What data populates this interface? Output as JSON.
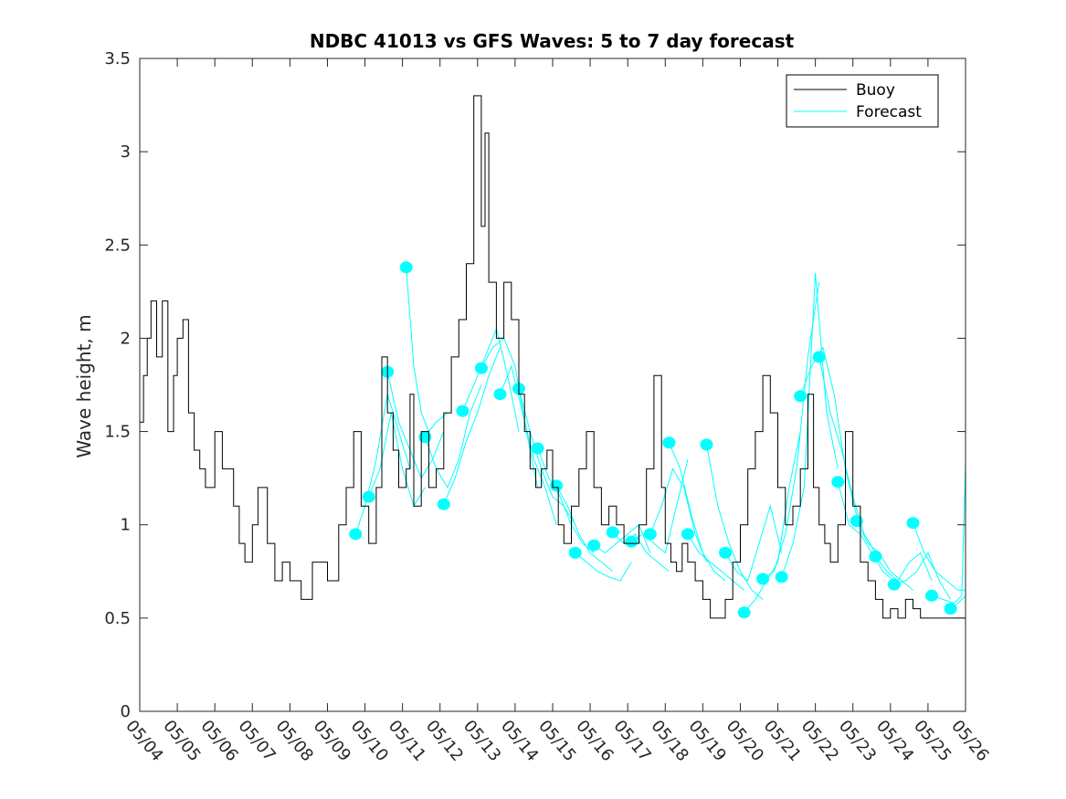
{
  "chart_data": {
    "type": "line",
    "title": "NDBC 41013 vs GFS Waves: 5 to 7 day forecast",
    "xlabel": "",
    "ylabel": "Wave height, m",
    "ylim": [
      0,
      3.5
    ],
    "xlim": [
      0,
      22
    ],
    "x_tick_labels": [
      "05/04",
      "05/05",
      "05/06",
      "05/07",
      "05/08",
      "05/09",
      "05/10",
      "05/11",
      "05/12",
      "05/13",
      "05/14",
      "05/15",
      "05/16",
      "05/17",
      "05/18",
      "05/19",
      "05/20",
      "05/21",
      "05/22",
      "05/23",
      "05/24",
      "05/25",
      "05/26"
    ],
    "y_ticks": [
      0,
      0.5,
      1,
      1.5,
      2,
      2.5,
      3,
      3.5
    ],
    "y_tick_labels": [
      "0",
      "0.5",
      "1",
      "1.5",
      "2",
      "2.5",
      "3",
      "3.5"
    ],
    "grid": false,
    "legend_position": "top-right",
    "colors": {
      "buoy": "#000000",
      "forecast": "#00ffff"
    },
    "series": [
      {
        "name": "Buoy",
        "style": "stairs",
        "x": [
          0,
          0.1,
          0.2,
          0.3,
          0.45,
          0.6,
          0.75,
          0.9,
          1.0,
          1.15,
          1.3,
          1.45,
          1.6,
          1.75,
          2.0,
          2.2,
          2.5,
          2.65,
          2.8,
          3.0,
          3.15,
          3.4,
          3.6,
          3.8,
          4.0,
          4.3,
          4.6,
          5.0,
          5.3,
          5.5,
          5.7,
          5.9,
          6.1,
          6.3,
          6.45,
          6.6,
          6.75,
          6.9,
          7.1,
          7.2,
          7.3,
          7.5,
          7.7,
          7.9,
          8.1,
          8.3,
          8.5,
          8.7,
          8.9,
          9.1,
          9.2,
          9.3,
          9.5,
          9.7,
          9.9,
          10.1,
          10.25,
          10.4,
          10.55,
          10.7,
          10.85,
          11.0,
          11.15,
          11.3,
          11.5,
          11.7,
          11.9,
          12.1,
          12.3,
          12.5,
          12.7,
          12.9,
          13.1,
          13.3,
          13.5,
          13.7,
          13.9,
          14.0,
          14.15,
          14.3,
          14.45,
          14.6,
          14.8,
          15.0,
          15.2,
          15.4,
          15.6,
          15.8,
          16.0,
          16.2,
          16.4,
          16.6,
          16.8,
          17.0,
          17.2,
          17.4,
          17.6,
          17.8,
          17.95,
          18.1,
          18.25,
          18.4,
          18.6,
          18.8,
          19.0,
          19.2,
          19.4,
          19.6,
          19.8,
          20.0,
          20.2,
          20.4,
          20.6,
          20.8,
          21.0,
          21.2,
          21.4,
          22.0
        ],
        "y": [
          1.55,
          1.8,
          2.0,
          2.2,
          1.9,
          2.2,
          1.5,
          1.8,
          2.0,
          2.1,
          1.6,
          1.4,
          1.3,
          1.2,
          1.5,
          1.3,
          1.1,
          0.9,
          0.8,
          1.0,
          1.2,
          0.9,
          0.7,
          0.8,
          0.7,
          0.6,
          0.8,
          0.7,
          1.0,
          1.2,
          1.5,
          1.1,
          0.9,
          1.2,
          1.9,
          1.6,
          1.4,
          1.2,
          1.3,
          1.7,
          1.1,
          1.5,
          1.2,
          1.3,
          1.6,
          1.9,
          2.1,
          2.4,
          3.3,
          2.6,
          3.1,
          2.3,
          2.0,
          2.3,
          2.1,
          1.7,
          1.5,
          1.3,
          1.2,
          1.3,
          1.4,
          1.2,
          1.0,
          0.9,
          1.1,
          1.3,
          1.5,
          1.2,
          1.0,
          1.1,
          1.0,
          0.9,
          0.9,
          1.0,
          1.3,
          1.8,
          1.2,
          0.9,
          0.8,
          0.75,
          0.9,
          0.8,
          0.7,
          0.6,
          0.5,
          0.5,
          0.6,
          0.8,
          1.0,
          1.3,
          1.5,
          1.8,
          1.6,
          1.2,
          1.0,
          1.1,
          1.3,
          1.7,
          1.2,
          1.0,
          0.9,
          0.8,
          1.0,
          1.5,
          1.1,
          0.8,
          0.7,
          0.6,
          0.5,
          0.55,
          0.5,
          0.6,
          0.55,
          0.5,
          0.5,
          0.5,
          0.5,
          0.5
        ]
      },
      {
        "name": "Forecast",
        "markers": [
          [
            5.75,
            0.95
          ],
          [
            6.1,
            1.15
          ],
          [
            6.6,
            1.82
          ],
          [
            7.1,
            2.38
          ],
          [
            7.6,
            1.47
          ],
          [
            8.1,
            1.11
          ],
          [
            8.6,
            1.61
          ],
          [
            9.1,
            1.84
          ],
          [
            9.6,
            1.7
          ],
          [
            10.1,
            1.73
          ],
          [
            10.6,
            1.41
          ],
          [
            11.1,
            1.21
          ],
          [
            11.6,
            0.85
          ],
          [
            12.1,
            0.89
          ],
          [
            12.6,
            0.96
          ],
          [
            13.1,
            0.91
          ],
          [
            13.6,
            0.95
          ],
          [
            14.1,
            1.44
          ],
          [
            14.6,
            0.95
          ],
          [
            15.1,
            1.43
          ],
          [
            15.6,
            0.85
          ],
          [
            16.1,
            0.53
          ],
          [
            16.6,
            0.71
          ],
          [
            17.1,
            0.72
          ],
          [
            17.6,
            1.69
          ],
          [
            18.1,
            1.9
          ],
          [
            18.6,
            1.23
          ],
          [
            19.1,
            1.02
          ],
          [
            19.6,
            0.83
          ],
          [
            20.1,
            0.68
          ],
          [
            20.6,
            1.01
          ],
          [
            21.1,
            0.62
          ],
          [
            21.6,
            0.55
          ]
        ],
        "runs": [
          {
            "x": [
              5.75,
              6.0,
              6.3,
              6.6,
              6.9,
              7.2
            ],
            "y": [
              0.95,
              1.1,
              1.35,
              1.7,
              1.5,
              1.3
            ]
          },
          {
            "x": [
              6.1,
              6.4,
              6.7,
              7.0,
              7.3,
              7.6
            ],
            "y": [
              1.15,
              1.3,
              1.6,
              1.3,
              1.1,
              1.2
            ]
          },
          {
            "x": [
              6.6,
              6.9,
              7.2,
              7.5,
              7.8,
              8.1
            ],
            "y": [
              1.82,
              1.55,
              1.4,
              1.25,
              1.35,
              1.5
            ]
          },
          {
            "x": [
              7.1,
              7.3,
              7.5,
              7.7,
              7.9,
              8.2
            ],
            "y": [
              2.38,
              1.85,
              1.6,
              1.5,
              1.55,
              1.6
            ]
          },
          {
            "x": [
              7.6,
              7.9,
              8.2,
              8.5,
              8.8,
              9.1
            ],
            "y": [
              1.47,
              1.3,
              1.2,
              1.35,
              1.6,
              1.75
            ]
          },
          {
            "x": [
              8.1,
              8.4,
              8.7,
              9.0,
              9.3,
              9.6
            ],
            "y": [
              1.11,
              1.25,
              1.45,
              1.6,
              1.8,
              1.95
            ]
          },
          {
            "x": [
              8.6,
              8.9,
              9.2,
              9.5,
              9.8,
              10.1
            ],
            "y": [
              1.61,
              1.75,
              1.9,
              2.05,
              1.8,
              1.5
            ]
          },
          {
            "x": [
              9.1,
              9.4,
              9.7,
              10.0,
              10.3,
              10.6
            ],
            "y": [
              1.84,
              1.95,
              2.0,
              1.85,
              1.5,
              1.2
            ]
          },
          {
            "x": [
              9.6,
              9.9,
              10.2,
              10.5,
              10.8,
              11.1
            ],
            "y": [
              1.7,
              1.85,
              1.6,
              1.35,
              1.2,
              1.0
            ]
          },
          {
            "x": [
              10.1,
              10.4,
              10.7,
              11.0,
              11.3,
              11.6
            ],
            "y": [
              1.73,
              1.5,
              1.3,
              1.15,
              1.1,
              1.0
            ]
          },
          {
            "x": [
              10.6,
              10.9,
              11.2,
              11.5,
              11.8,
              12.1
            ],
            "y": [
              1.41,
              1.25,
              1.15,
              1.0,
              0.9,
              0.85
            ]
          },
          {
            "x": [
              11.1,
              11.4,
              11.7,
              12.0,
              12.3,
              12.6
            ],
            "y": [
              1.21,
              1.1,
              0.95,
              0.85,
              0.8,
              0.75
            ]
          },
          {
            "x": [
              11.6,
              11.9,
              12.2,
              12.5,
              12.8,
              13.1
            ],
            "y": [
              0.85,
              0.8,
              0.75,
              0.72,
              0.7,
              0.8
            ]
          },
          {
            "x": [
              12.1,
              12.4,
              12.7,
              13.0,
              13.3,
              13.6
            ],
            "y": [
              0.89,
              0.85,
              0.9,
              0.95,
              1.0,
              0.85
            ]
          },
          {
            "x": [
              12.6,
              12.9,
              13.2,
              13.5,
              13.8,
              14.1
            ],
            "y": [
              0.96,
              0.9,
              0.95,
              0.85,
              0.8,
              0.75
            ]
          },
          {
            "x": [
              13.1,
              13.4,
              13.7,
              14.0,
              14.3,
              14.6
            ],
            "y": [
              0.91,
              0.95,
              0.9,
              0.85,
              1.1,
              1.35
            ]
          },
          {
            "x": [
              13.6,
              13.9,
              14.2,
              14.5,
              14.8,
              15.1
            ],
            "y": [
              0.95,
              1.1,
              1.3,
              1.2,
              0.95,
              0.8
            ]
          },
          {
            "x": [
              14.1,
              14.4,
              14.7,
              15.0,
              15.3,
              15.6
            ],
            "y": [
              1.44,
              1.3,
              1.05,
              0.85,
              0.75,
              0.7
            ]
          },
          {
            "x": [
              14.6,
              14.9,
              15.2,
              15.5,
              15.8,
              16.1
            ],
            "y": [
              0.95,
              0.85,
              0.8,
              0.75,
              0.7,
              0.65
            ]
          },
          {
            "x": [
              15.1,
              15.4,
              15.7,
              16.0,
              16.3,
              16.6
            ],
            "y": [
              1.43,
              1.1,
              0.9,
              0.75,
              0.65,
              0.6
            ]
          },
          {
            "x": [
              15.6,
              15.9,
              16.2,
              16.5,
              16.8,
              17.1
            ],
            "y": [
              0.85,
              0.75,
              0.7,
              0.9,
              1.1,
              0.85
            ]
          },
          {
            "x": [
              16.1,
              16.4,
              16.7,
              17.0,
              17.3,
              17.6
            ],
            "y": [
              0.53,
              0.6,
              0.7,
              0.8,
              1.2,
              1.5
            ]
          },
          {
            "x": [
              16.6,
              16.9,
              17.2,
              17.5,
              17.8,
              18.1
            ],
            "y": [
              0.71,
              0.75,
              0.95,
              1.3,
              1.9,
              2.3
            ]
          },
          {
            "x": [
              17.1,
              17.4,
              17.7,
              18.0,
              18.3,
              18.6
            ],
            "y": [
              0.72,
              0.9,
              1.2,
              2.35,
              1.6,
              1.3
            ]
          },
          {
            "x": [
              17.6,
              17.9,
              18.2,
              18.5,
              18.8,
              19.1
            ],
            "y": [
              1.69,
              1.85,
              1.95,
              1.7,
              1.3,
              1.05
            ]
          },
          {
            "x": [
              18.1,
              18.4,
              18.7,
              19.0,
              19.3,
              19.6
            ],
            "y": [
              1.9,
              1.6,
              1.4,
              1.15,
              0.95,
              0.85
            ]
          },
          {
            "x": [
              18.6,
              18.9,
              19.2,
              19.5,
              19.8,
              20.1
            ],
            "y": [
              1.23,
              1.0,
              0.95,
              0.85,
              0.75,
              0.7
            ]
          },
          {
            "x": [
              19.1,
              19.4,
              19.7,
              20.0,
              20.3,
              20.6
            ],
            "y": [
              1.02,
              0.9,
              0.85,
              0.75,
              0.7,
              0.65
            ]
          },
          {
            "x": [
              19.6,
              19.9,
              20.2,
              20.5,
              20.8,
              21.1
            ],
            "y": [
              0.83,
              0.75,
              0.7,
              0.8,
              0.85,
              0.7
            ]
          },
          {
            "x": [
              20.1,
              20.4,
              20.7,
              21.0,
              21.3,
              21.6
            ],
            "y": [
              0.68,
              0.7,
              0.75,
              0.85,
              0.7,
              0.6
            ]
          },
          {
            "x": [
              20.6,
              20.9,
              21.2,
              21.5,
              21.8,
              22.0
            ],
            "y": [
              1.01,
              0.85,
              0.75,
              0.7,
              0.65,
              0.65
            ]
          },
          {
            "x": [
              21.1,
              21.4,
              21.7,
              21.9,
              22.0
            ],
            "y": [
              0.62,
              0.6,
              0.58,
              0.62,
              1.33
            ]
          },
          {
            "x": [
              21.6,
              21.8,
              22.0
            ],
            "y": [
              0.55,
              0.58,
              0.62
            ]
          }
        ]
      }
    ]
  }
}
